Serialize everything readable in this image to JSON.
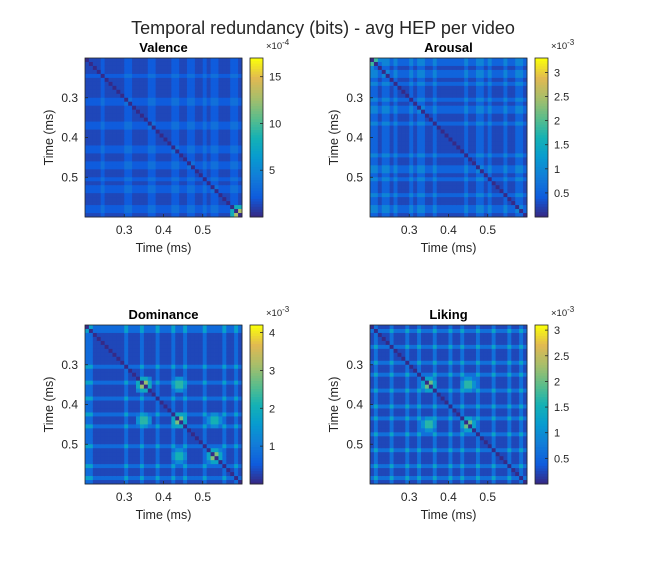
{
  "figure": {
    "title": "Temporal redundancy (bits) - avg HEP per video"
  },
  "chart_data": [
    {
      "type": "heatmap",
      "title": "Valence",
      "xlabel": "Time (ms)",
      "ylabel": "Time (ms)",
      "xlim": [
        0.2,
        0.6
      ],
      "ylim": [
        0.2,
        0.6
      ],
      "x_ticks": [
        "0.3",
        "0.4",
        "0.5"
      ],
      "y_ticks": [
        "0.3",
        "0.4",
        "0.5"
      ],
      "colorbar": {
        "ticks": [
          "5",
          "10",
          "15"
        ],
        "exponent_base": "×10",
        "exponent_power": "-4",
        "range": [
          0.0,
          17.0
        ],
        "tick_values": [
          5,
          10,
          15
        ]
      },
      "bands": [
        0.24,
        0.25,
        0.3,
        0.315,
        0.365,
        0.38,
        0.425,
        0.435,
        0.46,
        0.475,
        0.495,
        0.505,
        0.52,
        0.535,
        0.575,
        0.585
      ],
      "band_level": 0.12,
      "cross_level": 0.2,
      "diag_level": 0.0,
      "bg_level": 0.07,
      "hotspots": [
        [
          0.59,
          0.59,
          1.0
        ]
      ]
    },
    {
      "type": "heatmap",
      "title": "Arousal",
      "xlabel": "Time (ms)",
      "ylabel": "Time (ms)",
      "xlim": [
        0.2,
        0.6
      ],
      "ylim": [
        0.2,
        0.6
      ],
      "x_ticks": [
        "0.3",
        "0.4",
        "0.5"
      ],
      "y_ticks": [
        "0.3",
        "0.4",
        "0.5"
      ],
      "colorbar": {
        "ticks": [
          "0.5",
          "1",
          "1.5",
          "2",
          "2.5",
          "3"
        ],
        "exponent_base": "×10",
        "exponent_power": "-3",
        "range": [
          0.0,
          3.3
        ],
        "tick_values": [
          0.5,
          1,
          1.5,
          2,
          2.5,
          3
        ]
      },
      "bands": [
        0.205,
        0.215,
        0.235,
        0.245,
        0.26,
        0.27,
        0.3,
        0.31,
        0.325,
        0.335,
        0.36,
        0.37,
        0.44,
        0.45,
        0.475,
        0.49,
        0.5,
        0.51,
        0.535,
        0.545,
        0.575,
        0.585
      ],
      "band_level": 0.15,
      "cross_level": 0.28,
      "diag_level": 0.0,
      "bg_level": 0.07,
      "hotspots": [
        [
          0.205,
          0.205,
          0.85
        ]
      ]
    },
    {
      "type": "heatmap",
      "title": "Dominance",
      "xlabel": "Time (ms)",
      "ylabel": "Time (ms)",
      "xlim": [
        0.2,
        0.6
      ],
      "ylim": [
        0.2,
        0.6
      ],
      "x_ticks": [
        "0.3",
        "0.4",
        "0.5"
      ],
      "y_ticks": [
        "0.3",
        "0.4",
        "0.5"
      ],
      "colorbar": {
        "ticks": [
          "1",
          "2",
          "3",
          "4"
        ],
        "exponent_base": "×10",
        "exponent_power": "-3",
        "range": [
          0.0,
          4.2
        ],
        "tick_values": [
          1,
          2,
          3,
          4
        ]
      },
      "bands": [
        0.205,
        0.215,
        0.3,
        0.31,
        0.34,
        0.35,
        0.38,
        0.39,
        0.42,
        0.43,
        0.45,
        0.46,
        0.5,
        0.51,
        0.55,
        0.56,
        0.58,
        0.59
      ],
      "band_level": 0.18,
      "cross_level": 0.4,
      "diag_level": 0.0,
      "bg_level": 0.07,
      "hotspots": [
        [
          0.35,
          0.35,
          0.95
        ],
        [
          0.44,
          0.35,
          0.7
        ],
        [
          0.35,
          0.44,
          0.7
        ],
        [
          0.44,
          0.44,
          0.9
        ],
        [
          0.53,
          0.53,
          0.9
        ],
        [
          0.53,
          0.44,
          0.65
        ],
        [
          0.44,
          0.53,
          0.65
        ]
      ]
    },
    {
      "type": "heatmap",
      "title": "Liking",
      "xlabel": "Time (ms)",
      "ylabel": "Time (ms)",
      "xlim": [
        0.2,
        0.6
      ],
      "ylim": [
        0.2,
        0.6
      ],
      "x_ticks": [
        "0.3",
        "0.4",
        "0.5"
      ],
      "y_ticks": [
        "0.3",
        "0.4",
        "0.5"
      ],
      "colorbar": {
        "ticks": [
          "0.5",
          "1",
          "1.5",
          "2",
          "2.5",
          "3"
        ],
        "exponent_base": "×10",
        "exponent_power": "-3",
        "range": [
          0.0,
          3.1
        ],
        "tick_values": [
          0.5,
          1,
          1.5,
          2,
          2.5,
          3
        ]
      },
      "bands": [
        0.21,
        0.22,
        0.25,
        0.26,
        0.29,
        0.3,
        0.32,
        0.33,
        0.36,
        0.37,
        0.4,
        0.41,
        0.43,
        0.44,
        0.47,
        0.48,
        0.51,
        0.52,
        0.55,
        0.56,
        0.58,
        0.59
      ],
      "band_level": 0.2,
      "cross_level": 0.42,
      "diag_level": 0.0,
      "bg_level": 0.07,
      "hotspots": [
        [
          0.35,
          0.35,
          0.85
        ],
        [
          0.45,
          0.35,
          0.7
        ],
        [
          0.35,
          0.45,
          0.7
        ],
        [
          0.45,
          0.45,
          0.85
        ]
      ]
    }
  ]
}
